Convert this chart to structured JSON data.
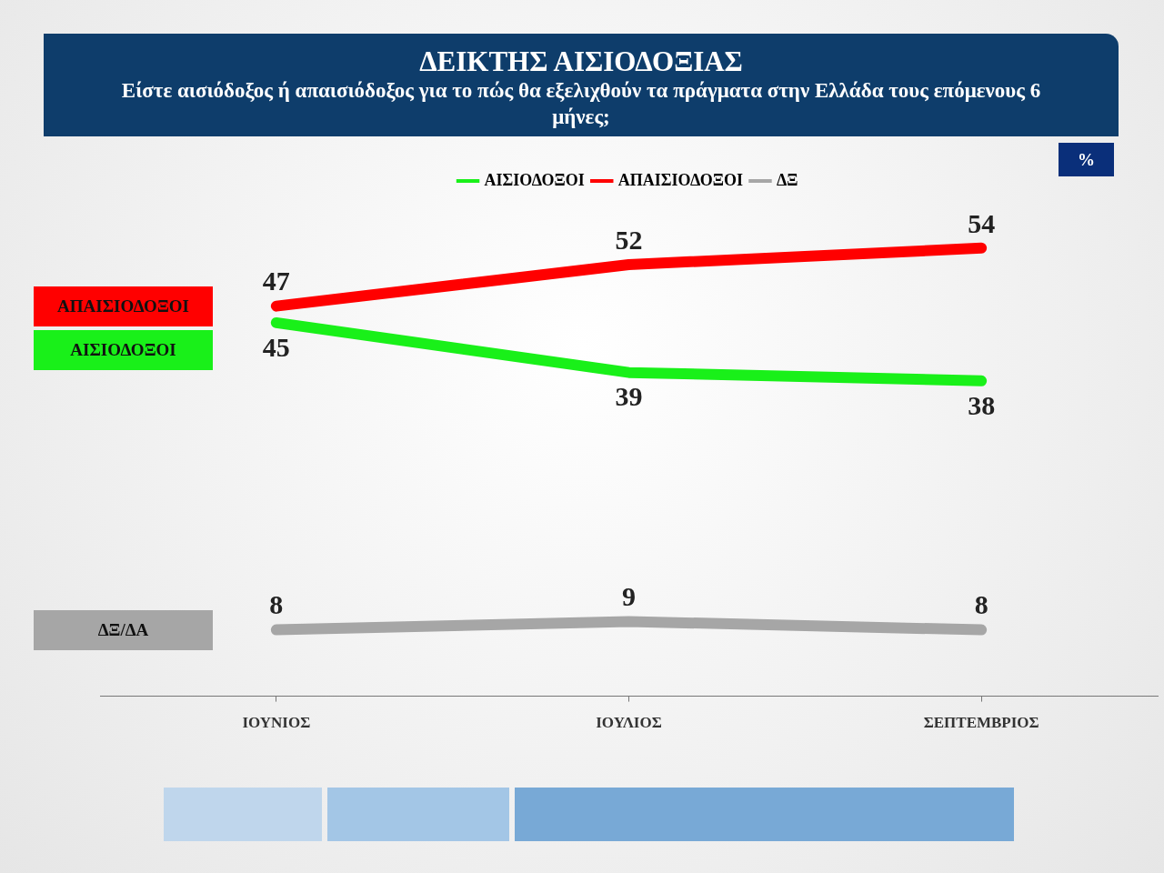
{
  "chart_data": {
    "type": "line",
    "title": "ΔΕΙΚΤΗΣ ΑΙΣΙΟΔΟΞΙΑΣ",
    "subtitle": "Είστε αισιόδοξος ή απαισιόδοξος  για το πώς θα εξελιχθούν τα πράγματα στην Ελλάδα τους επόμενους 6 μήνες;",
    "categories": [
      "ΙΟΥΝΙΟΣ",
      "ΙΟΥΛΙΟΣ",
      "ΣΕΠΤΕΜΒΡΙΟΣ"
    ],
    "series": [
      {
        "name": "ΑΙΣΙΟΔΟΞΟΙ",
        "color": "#19f019",
        "values": [
          45,
          39,
          38
        ]
      },
      {
        "name": "ΑΠΑΙΣΙΟΔΟΞΟΙ",
        "color": "#ff0000",
        "values": [
          47,
          52,
          54
        ]
      },
      {
        "name": "ΔΞ",
        "color": "#a6a6a6",
        "values": [
          8,
          9,
          8
        ]
      }
    ],
    "tick_labels": "x",
    "grid": false,
    "legend": "top",
    "marker": "none",
    "line_style": "solid",
    "data_labels": true,
    "annotations": [
      "%",
      "ΑΠΑΙΣΙΟΔΟΞΟΙ",
      "ΑΙΣΙΟΔΟΞΟΙ",
      "ΔΞ/ΔΑ"
    ]
  }
}
